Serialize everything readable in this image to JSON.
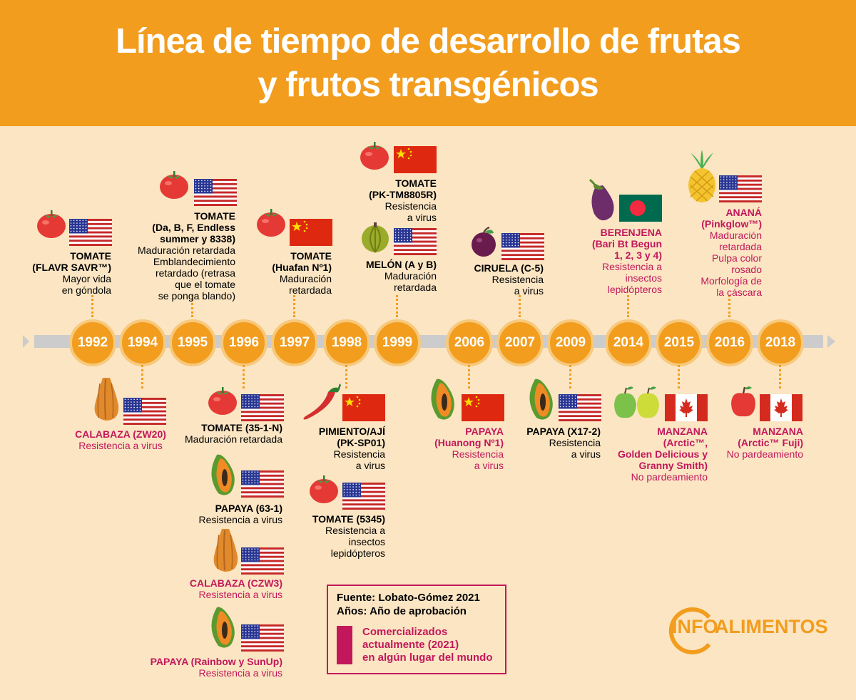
{
  "title": {
    "line1": "Línea de tiempo de desarrollo de frutas",
    "line2": "y frutos transgénicos"
  },
  "colors": {
    "header": "#f29d1e",
    "background": "#fbe5c3",
    "highlight": "#c2185b",
    "axis": "#cccccc"
  },
  "years": [
    "1992",
    "1994",
    "1995",
    "1996",
    "1997",
    "1998",
    "1999",
    "2006",
    "2007",
    "2009",
    "2014",
    "2015",
    "2016",
    "2018"
  ],
  "entries": [
    {
      "id": "e1992",
      "year": "1992",
      "fruit": "tomato-icon",
      "flag": "usa-flag-icon",
      "commercialized": false,
      "name": "TOMATE\n(FLAVR SAVR™)",
      "desc": "Mayor vida\nen góndola"
    },
    {
      "id": "e1994",
      "year": "1994",
      "fruit": "squash-icon",
      "flag": "usa-flag-icon",
      "commercialized": true,
      "name": "CALABAZA (ZW20)",
      "desc": "Resistencia a virus"
    },
    {
      "id": "e1995",
      "year": "1995",
      "fruit": "tomato-icon",
      "flag": "usa-flag-icon",
      "commercialized": false,
      "name": "TOMATE\n(Da, B, F, Endless\nsummer y 8338)",
      "desc": "Maduración retardada\nEmblandecimiento\nretardado (retrasa\nque el tomate\nse ponga blando)"
    },
    {
      "id": "e1996a",
      "year": "1996",
      "fruit": "tomato-icon",
      "flag": "usa-flag-icon",
      "commercialized": false,
      "name": "TOMATE (35-1-N)",
      "desc": "Maduración retardada"
    },
    {
      "id": "e1996b",
      "year": "1996",
      "fruit": "papaya-icon",
      "flag": "usa-flag-icon",
      "commercialized": false,
      "name": "PAPAYA (63-1)",
      "desc": "Resistencia a virus"
    },
    {
      "id": "e1996c",
      "year": "1996",
      "fruit": "squash-icon",
      "flag": "usa-flag-icon",
      "commercialized": true,
      "name": "CALABAZA (CZW3)",
      "desc": "Resistencia a virus"
    },
    {
      "id": "e1996d",
      "year": "1996",
      "fruit": "papaya-icon",
      "flag": "usa-flag-icon",
      "commercialized": true,
      "name": "PAPAYA (Rainbow y SunUp)",
      "desc": "Resistencia a virus"
    },
    {
      "id": "e1997",
      "year": "1997",
      "fruit": "tomato-icon",
      "flag": "china-flag-icon",
      "commercialized": false,
      "name": "TOMATE\n(Huafan Nº1)",
      "desc": "Maduración\nretardada"
    },
    {
      "id": "e1998a",
      "year": "1998",
      "fruit": "chili-pepper-icon",
      "flag": "china-flag-icon",
      "commercialized": false,
      "name": "PIMIENTO/AJÍ\n(PK-SP01)",
      "desc": "Resistencia\na virus"
    },
    {
      "id": "e1998b",
      "year": "1998",
      "fruit": "tomato-icon",
      "flag": "usa-flag-icon",
      "commercialized": false,
      "name": "TOMATE (5345)",
      "desc": "Resistencia a\ninsectos\nlepidópteros"
    },
    {
      "id": "e1999a",
      "year": "1999",
      "fruit": "tomato-icon",
      "flag": "china-flag-icon",
      "commercialized": false,
      "name": "TOMATE\n(PK-TM8805R)",
      "desc": "Resistencia\na virus"
    },
    {
      "id": "e1999b",
      "year": "1999",
      "fruit": "melon-icon",
      "flag": "usa-flag-icon",
      "commercialized": false,
      "name": "MELÓN (A y B)",
      "desc": "Maduración\nretardada"
    },
    {
      "id": "e2006",
      "year": "2006",
      "fruit": "papaya-icon",
      "flag": "china-flag-icon",
      "commercialized": true,
      "name": "PAPAYA\n(Huanong Nº1)",
      "desc": "Resistencia\na virus"
    },
    {
      "id": "e2007",
      "year": "2007",
      "fruit": "plum-icon",
      "flag": "usa-flag-icon",
      "commercialized": false,
      "name": "CIRUELA (C-5)",
      "desc": "Resistencia\na virus"
    },
    {
      "id": "e2009",
      "year": "2009",
      "fruit": "papaya-icon",
      "flag": "usa-flag-icon",
      "commercialized": false,
      "name": "PAPAYA (X17-2)",
      "desc": "Resistencia\na virus"
    },
    {
      "id": "e2014",
      "year": "2014",
      "fruit": "eggplant-icon",
      "flag": "bangladesh-flag-icon",
      "commercialized": true,
      "name": "BERENJENA\n(Bari Bt Begun\n1, 2, 3 y 4)",
      "desc": "Resistencia a\ninsectos\nlepidópteros"
    },
    {
      "id": "e2015",
      "year": "2015",
      "fruit": "apples-icon",
      "flag": "canada-flag-icon",
      "commercialized": true,
      "name": "MANZANA\n(Arctic™,\nGolden Delicious y\nGranny Smith)",
      "desc": "No pardeamiento"
    },
    {
      "id": "e2016",
      "year": "2016",
      "fruit": "pineapple-icon",
      "flag": "usa-flag-icon",
      "commercialized": true,
      "name": "ANANÁ\n(Pinkglow™)",
      "desc": "Maduración\nretardada\nPulpa color\nrosado\nMorfología de\nla cáscara"
    },
    {
      "id": "e2018",
      "year": "2018",
      "fruit": "apple-icon",
      "flag": "canada-flag-icon",
      "commercialized": true,
      "name": "MANZANA\n(Arctic™ Fuji)",
      "desc": "No pardeamiento"
    }
  ],
  "legend": {
    "source": "Fuente: Lobato-Gómez 2021",
    "years": "Años: Año de aprobación",
    "commercialized": "Comercializados\nactualmente (2021)\nen algún lugar del mundo"
  },
  "logo": {
    "part1": "INFO",
    "part2": "ALIMENTOS"
  }
}
